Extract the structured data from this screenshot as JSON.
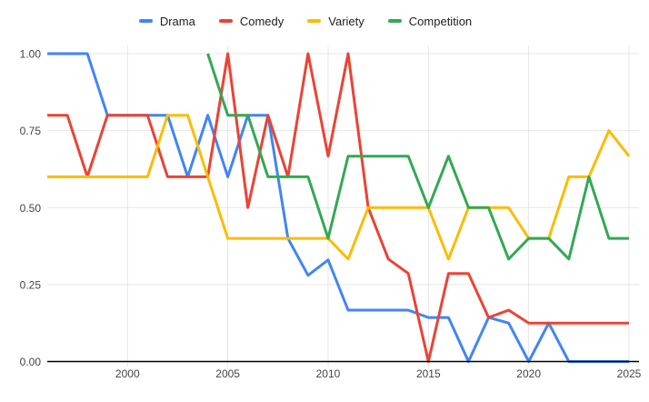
{
  "chart_data": {
    "type": "line",
    "title": "",
    "xlabel": "",
    "ylabel": "",
    "x_range": [
      1996,
      2025
    ],
    "ylim": [
      0,
      1
    ],
    "grid": true,
    "legend_position": "top",
    "background": "#ffffff",
    "grid_color": "#e6e6e6",
    "axis_color": "#000000",
    "tick_label_color": "#444444",
    "legend_text_color": "#202124",
    "x": [
      1996,
      1997,
      1998,
      1999,
      2000,
      2001,
      2002,
      2003,
      2004,
      2005,
      2006,
      2007,
      2008,
      2009,
      2010,
      2011,
      2012,
      2013,
      2014,
      2015,
      2016,
      2017,
      2018,
      2019,
      2020,
      2021,
      2022,
      2023,
      2024,
      2025
    ],
    "xtick_years": [
      2000,
      2005,
      2010,
      2015,
      2020,
      2025
    ],
    "xtick_labels": [
      "2000",
      "2005",
      "2010",
      "2015",
      "2020",
      "2025"
    ],
    "yticks": [
      0,
      0.25,
      0.5,
      0.75,
      1
    ],
    "ytick_labels": [
      "0.00",
      "0.25",
      "0.50",
      "0.75",
      "1.00"
    ],
    "series": [
      {
        "name": "Drama",
        "color": "#4285F4",
        "values": [
          1,
          1,
          1,
          0.8,
          0.8,
          0.8,
          0.8,
          0.6,
          0.8,
          0.6,
          0.8,
          0.8,
          0.4,
          0.28,
          0.33,
          0.167,
          0.167,
          0.167,
          0.167,
          0.143,
          0.143,
          0,
          0.143,
          0.125,
          0,
          0.125,
          0,
          0,
          0,
          0
        ]
      },
      {
        "name": "Comedy",
        "color": "#EA4335",
        "values": [
          0.8,
          0.8,
          0.6,
          0.8,
          0.8,
          0.8,
          0.6,
          0.6,
          0.6,
          1,
          0.5,
          0.8,
          0.6,
          1,
          0.667,
          1,
          0.5,
          0.333,
          0.286,
          0,
          0.286,
          0.286,
          0.143,
          0.167,
          0.125,
          0.125,
          0.125,
          0.125,
          0.125,
          0.125
        ]
      },
      {
        "name": "Variety",
        "color": "#FBBC04",
        "values": [
          0.6,
          0.6,
          0.6,
          0.6,
          0.6,
          0.6,
          0.8,
          0.8,
          0.6,
          0.4,
          0.4,
          0.4,
          0.4,
          0.4,
          0.4,
          0.333,
          0.5,
          0.5,
          0.5,
          0.5,
          0.333,
          0.5,
          0.5,
          0.5,
          0.4,
          0.4,
          0.6,
          0.6,
          0.75,
          0.667
        ]
      },
      {
        "name": "Competition",
        "color": "#34A853",
        "values": [
          null,
          null,
          null,
          null,
          null,
          null,
          null,
          null,
          1,
          0.8,
          0.8,
          0.6,
          0.6,
          0.6,
          0.4,
          0.667,
          0.667,
          0.667,
          0.667,
          0.5,
          0.667,
          0.5,
          0.5,
          0.333,
          0.4,
          0.4,
          0.333,
          0.6,
          0.4,
          0.4
        ]
      }
    ]
  }
}
